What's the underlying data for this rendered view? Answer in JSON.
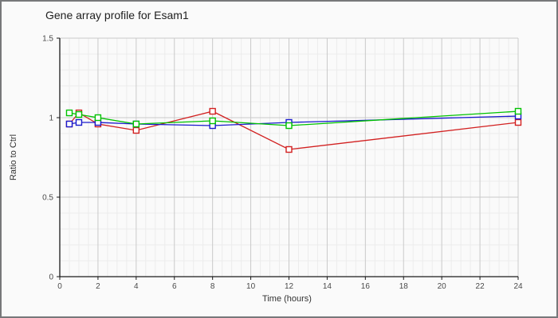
{
  "title": "Gene array profile for Esam1",
  "colors": {
    "frame_border": "#77787a",
    "background": "#fafafa",
    "axis": "#1a1a1a",
    "major_grid": "#c9c9c9",
    "minor_grid": "#ececec",
    "tick_label": "#4a4a4a",
    "series_red": "#d22020",
    "series_blue": "#1a1acd",
    "series_green": "#00c200"
  },
  "chart_data": {
    "type": "line",
    "title": "Gene array profile for Esam1",
    "xlabel": "Time (hours)",
    "ylabel": "Ratio to Ctrl",
    "x": [
      0.5,
      1,
      2,
      4,
      8,
      12,
      24
    ],
    "series": [
      {
        "name": "red",
        "color": "#d22020",
        "values": [
          0.96,
          1.03,
          0.96,
          0.92,
          1.04,
          0.8,
          0.97
        ]
      },
      {
        "name": "blue",
        "color": "#1a1acd",
        "values": [
          0.96,
          0.97,
          0.97,
          0.96,
          0.95,
          0.97,
          1.01
        ]
      },
      {
        "name": "green",
        "color": "#00c200",
        "values": [
          1.03,
          1.02,
          1.0,
          0.96,
          0.98,
          0.95,
          1.04
        ]
      }
    ],
    "xlim": [
      0,
      24
    ],
    "ylim": [
      0,
      1.5
    ],
    "x_tick_values": [
      0,
      2,
      4,
      6,
      8,
      10,
      12,
      14,
      16,
      18,
      20,
      22,
      24
    ],
    "x_tick_labels": [
      "0",
      "2",
      "4",
      "6",
      "8",
      "10",
      "12",
      "14",
      "16",
      "18",
      "20",
      "22",
      "24"
    ],
    "y_tick_values": [
      0,
      0.5,
      1,
      1.5
    ],
    "y_tick_labels": [
      "0",
      "0.5",
      "1",
      "1.5"
    ],
    "x_minor_step": 0.5,
    "y_minor_step": 0.1,
    "grid": true,
    "legend": "none",
    "marker": "open-square"
  }
}
